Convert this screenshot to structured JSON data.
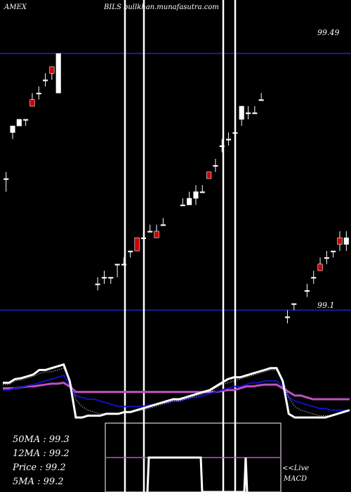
{
  "chart_data": {
    "type": "candlestick",
    "header": {
      "exchange": "AMEX",
      "title": "BILS bullkhan.munafasutra.com"
    },
    "price_levels": [
      {
        "label": "99.49",
        "value": 99.49
      },
      {
        "label": "99.1",
        "value": 99.1
      }
    ],
    "ylim": [
      99.08,
      99.55
    ],
    "candles": [
      {
        "o": 99.3,
        "h": 99.31,
        "l": 99.28,
        "c": 99.3
      },
      {
        "o": 99.37,
        "h": 99.38,
        "l": 99.36,
        "c": 99.38
      },
      {
        "o": 99.38,
        "h": 99.39,
        "l": 99.38,
        "c": 99.39
      },
      {
        "o": 99.39,
        "h": 99.39,
        "l": 99.38,
        "c": 99.39
      },
      {
        "o": 99.42,
        "h": 99.43,
        "l": 99.41,
        "c": 99.41
      },
      {
        "o": 99.43,
        "h": 99.44,
        "l": 99.42,
        "c": 99.43
      },
      {
        "o": 99.45,
        "h": 99.46,
        "l": 99.44,
        "c": 99.45
      },
      {
        "o": 99.47,
        "h": 99.47,
        "l": 99.45,
        "c": 99.46
      },
      {
        "o": 99.43,
        "h": 99.49,
        "l": 99.43,
        "c": 99.49
      },
      null,
      null,
      null,
      null,
      null,
      {
        "o": 99.14,
        "h": 99.15,
        "l": 99.13,
        "c": 99.14
      },
      {
        "o": 99.15,
        "h": 99.16,
        "l": 99.14,
        "c": 99.15
      },
      {
        "o": 99.15,
        "h": 99.15,
        "l": 99.14,
        "c": 99.15
      },
      {
        "o": 99.17,
        "h": 99.17,
        "l": 99.15,
        "c": 99.17
      },
      {
        "o": 99.17,
        "h": 99.18,
        "l": 99.17,
        "c": 99.17
      },
      {
        "o": 99.19,
        "h": 99.19,
        "l": 99.18,
        "c": 99.19
      },
      {
        "o": 99.21,
        "h": 99.21,
        "l": 99.19,
        "c": 99.19
      },
      {
        "o": 99.21,
        "h": 99.22,
        "l": 99.21,
        "c": 99.21
      },
      {
        "o": 99.22,
        "h": 99.23,
        "l": 99.22,
        "c": 99.22
      },
      {
        "o": 99.22,
        "h": 99.23,
        "l": 99.21,
        "c": 99.21
      },
      {
        "o": 99.23,
        "h": 99.24,
        "l": 99.23,
        "c": 99.23
      },
      null,
      null,
      {
        "o": 99.26,
        "h": 99.27,
        "l": 99.26,
        "c": 99.26
      },
      {
        "o": 99.26,
        "h": 99.28,
        "l": 99.26,
        "c": 99.27
      },
      {
        "o": 99.27,
        "h": 99.29,
        "l": 99.26,
        "c": 99.28
      },
      {
        "o": 99.28,
        "h": 99.29,
        "l": 99.28,
        "c": 99.28
      },
      {
        "o": 99.31,
        "h": 99.31,
        "l": 99.3,
        "c": 99.3
      },
      {
        "o": 99.32,
        "h": 99.33,
        "l": 99.31,
        "c": 99.32
      },
      {
        "o": 99.35,
        "h": 99.36,
        "l": 99.34,
        "c": 99.35
      },
      {
        "o": 99.36,
        "h": 99.37,
        "l": 99.35,
        "c": 99.36
      },
      {
        "o": 99.37,
        "h": 99.37,
        "l": 99.37,
        "c": 99.37
      },
      {
        "o": 99.39,
        "h": 99.41,
        "l": 99.38,
        "c": 99.41
      },
      {
        "o": 99.4,
        "h": 99.41,
        "l": 99.39,
        "c": 99.4
      },
      {
        "o": 99.4,
        "h": 99.41,
        "l": 99.4,
        "c": 99.4
      },
      {
        "o": 99.42,
        "h": 99.43,
        "l": 99.42,
        "c": 99.42
      },
      null,
      null,
      null,
      {
        "o": 99.09,
        "h": 99.1,
        "l": 99.08,
        "c": 99.09
      },
      {
        "o": 99.11,
        "h": 99.11,
        "l": 99.1,
        "c": 99.11
      },
      null,
      {
        "o": 99.13,
        "h": 99.14,
        "l": 99.12,
        "c": 99.13
      },
      {
        "o": 99.15,
        "h": 99.16,
        "l": 99.14,
        "c": 99.15
      },
      {
        "o": 99.17,
        "h": 99.18,
        "l": 99.16,
        "c": 99.16
      },
      {
        "o": 99.18,
        "h": 99.19,
        "l": 99.17,
        "c": 99.18
      },
      {
        "o": 99.19,
        "h": 99.19,
        "l": 99.18,
        "c": 99.19
      },
      {
        "o": 99.21,
        "h": 99.22,
        "l": 99.19,
        "c": 99.2
      },
      {
        "o": 99.2,
        "h": 99.22,
        "l": 99.19,
        "c": 99.21
      }
    ],
    "moving_averages": {
      "ma_band_ylim": [
        0,
        100
      ],
      "white": [
        58,
        58,
        62,
        63,
        65,
        67,
        72,
        72,
        74,
        76,
        78,
        60,
        20,
        20,
        22,
        22,
        22,
        24,
        24,
        24,
        26,
        26,
        28,
        30,
        32,
        34,
        36,
        38,
        40,
        40,
        42,
        44,
        46,
        48,
        50,
        54,
        58,
        62,
        64,
        64,
        66,
        68,
        70,
        72,
        74,
        74,
        60,
        24,
        20,
        20,
        20,
        20,
        20,
        20,
        22,
        24,
        26,
        28
      ],
      "black_dotted": [
        56,
        56,
        60,
        61,
        63,
        65,
        68,
        70,
        70,
        72,
        74,
        62,
        40,
        32,
        28,
        26,
        24,
        24,
        24,
        24,
        25,
        26,
        27,
        28,
        30,
        32,
        34,
        36,
        38,
        38,
        40,
        42,
        44,
        46,
        48,
        52,
        56,
        58,
        60,
        62,
        64,
        66,
        68,
        70,
        72,
        72,
        62,
        42,
        32,
        28,
        26,
        24,
        22,
        22,
        22,
        24,
        26,
        28
      ],
      "blue": [
        50,
        50,
        52,
        53,
        55,
        56,
        58,
        60,
        62,
        64,
        66,
        56,
        44,
        42,
        40,
        40,
        38,
        36,
        34,
        32,
        32,
        32,
        32,
        32,
        34,
        34,
        36,
        36,
        38,
        38,
        40,
        42,
        42,
        44,
        46,
        48,
        50,
        52,
        54,
        54,
        56,
        58,
        58,
        60,
        60,
        60,
        54,
        42,
        38,
        36,
        34,
        32,
        30,
        30,
        28,
        28,
        28,
        28
      ],
      "magenta": [
        52,
        52,
        52,
        53,
        54,
        54,
        55,
        56,
        57,
        57,
        58,
        54,
        48,
        48,
        48,
        48,
        48,
        48,
        48,
        48,
        48,
        48,
        48,
        48,
        48,
        48,
        48,
        48,
        48,
        48,
        48,
        48,
        48,
        48,
        48,
        48,
        49,
        50,
        50,
        52,
        54,
        54,
        55,
        56,
        56,
        56,
        52,
        48,
        44,
        44,
        42,
        40,
        40,
        40,
        40,
        40,
        40,
        40
      ]
    },
    "stats": [
      {
        "label": "50MA : 99.3",
        "key": "50MA",
        "value": 99.3
      },
      {
        "label": "12MA : 99.2",
        "key": "12MA",
        "value": 99.2
      },
      {
        "label": "Price   : 99.2",
        "key": "Price",
        "value": 99.2
      },
      {
        "label": "5MA : 99.2",
        "key": "5MA",
        "value": 99.2
      }
    ],
    "macd_labels": {
      "live": "<<Live",
      "name": "MACD"
    },
    "colors": {
      "background": "#000000",
      "up": "#ffffff",
      "down": "#d00000",
      "level_line": "#1a1a9a",
      "ma_white": "#ffffff",
      "ma_blue": "#1010c8",
      "ma_magenta": "#c050c0",
      "macd_signal": "#c050c0"
    }
  }
}
